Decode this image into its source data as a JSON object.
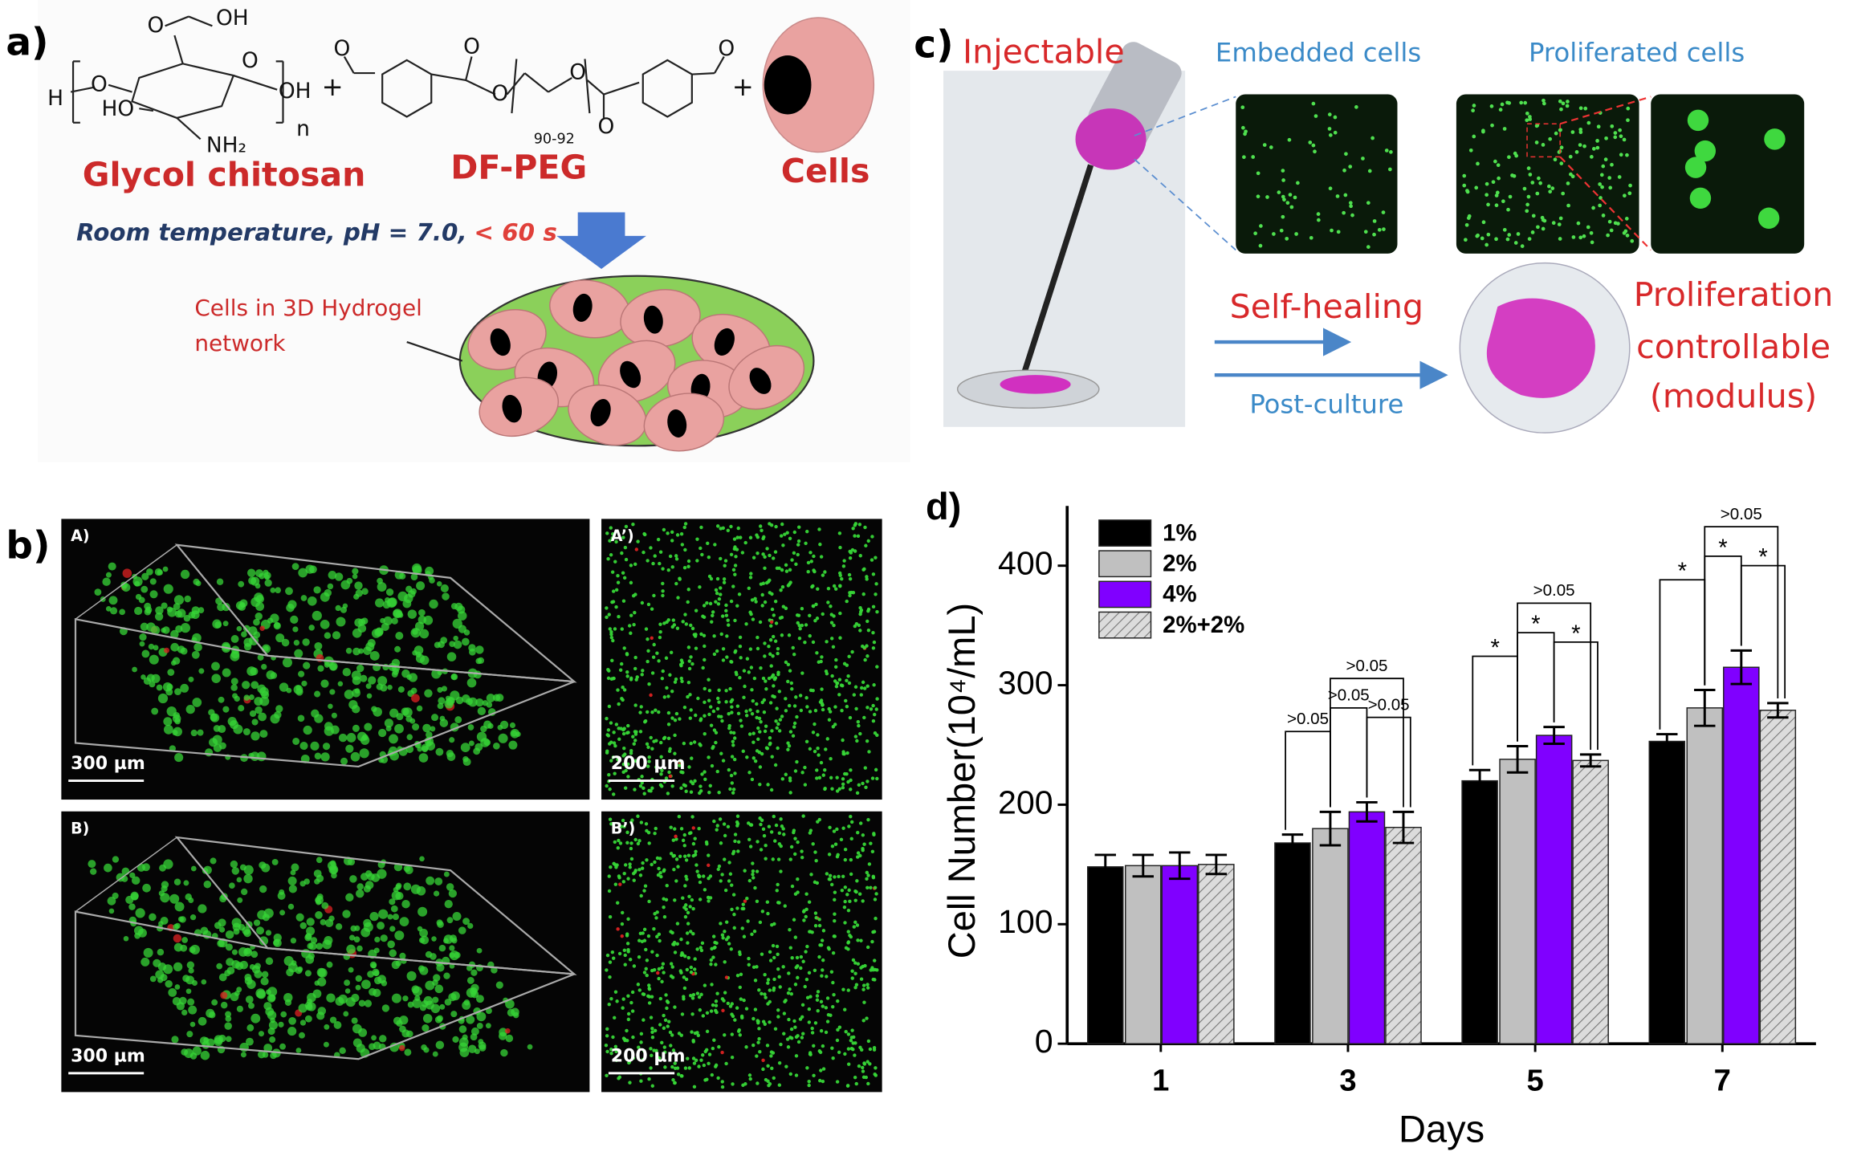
{
  "panel_a": {
    "label": "a)",
    "chitosan_labels": [
      "O",
      "OH",
      "H",
      "O",
      "O",
      "OH",
      "HO",
      "NH₂",
      "n"
    ],
    "peg_labels": [
      "O",
      "O",
      "O",
      "O",
      "O",
      "O",
      "90-92"
    ],
    "plus_signs": [
      "+",
      "+"
    ],
    "names": [
      "Glycol chitosan",
      "DF-PEG",
      "Cells"
    ],
    "condition": "Room temperature, pH = 7.0,",
    "condition_time": "< 60 s",
    "hydrogel_label": [
      "Cells in 3D Hydrogel",
      "network"
    ]
  },
  "panel_b": {
    "label": "b)",
    "images": [
      {
        "tag": "A)",
        "scale": "300 µm"
      },
      {
        "tag": "A’)",
        "scale": "200 µm"
      },
      {
        "tag": "B)",
        "scale": "300 µm"
      },
      {
        "tag": "B’)",
        "scale": "200 µm"
      }
    ]
  },
  "panel_c": {
    "label": "c)",
    "injectable": "Injectable",
    "embedded": "Embedded cells",
    "proliferated": "Proliferated cells",
    "self_healing": "Self-healing",
    "post_culture": "Post-culture",
    "proliferation": [
      "Proliferation",
      "controllable",
      "(modulus)"
    ]
  },
  "chart_data": {
    "type": "bar",
    "panel_label": "d)",
    "x_label": "Days",
    "y_label": "Cell Number(10⁴/mL)",
    "categories": [
      "1",
      "3",
      "5",
      "7"
    ],
    "series": [
      {
        "name": "1%",
        "color": "#000000",
        "values": [
          148,
          168,
          220,
          253
        ],
        "errors": [
          10,
          7,
          9,
          6
        ]
      },
      {
        "name": "2%",
        "color": "#c0c0c0",
        "values": [
          149,
          180,
          238,
          281
        ],
        "errors": [
          9,
          14,
          11,
          15
        ]
      },
      {
        "name": "4%",
        "color": "#8000ff",
        "values": [
          149,
          194,
          258,
          315
        ],
        "errors": [
          11,
          8,
          7,
          14
        ]
      },
      {
        "name": "2%+2%",
        "color": "#dcdcdc",
        "hatch": true,
        "values": [
          150,
          181,
          237,
          279
        ],
        "errors": [
          8,
          13,
          5,
          6
        ]
      }
    ],
    "significance": [
      [],
      [
        ">0.05",
        ">0.05",
        ">0.05",
        ">0.05"
      ],
      [
        "*",
        ">0.05",
        "*",
        "*"
      ],
      [
        "*",
        ">0.05",
        "*",
        "*"
      ]
    ],
    "ylim": [
      0,
      450
    ],
    "yticks": [
      0,
      100,
      200,
      300,
      400
    ],
    "grid": false,
    "legend": "upper-left"
  }
}
